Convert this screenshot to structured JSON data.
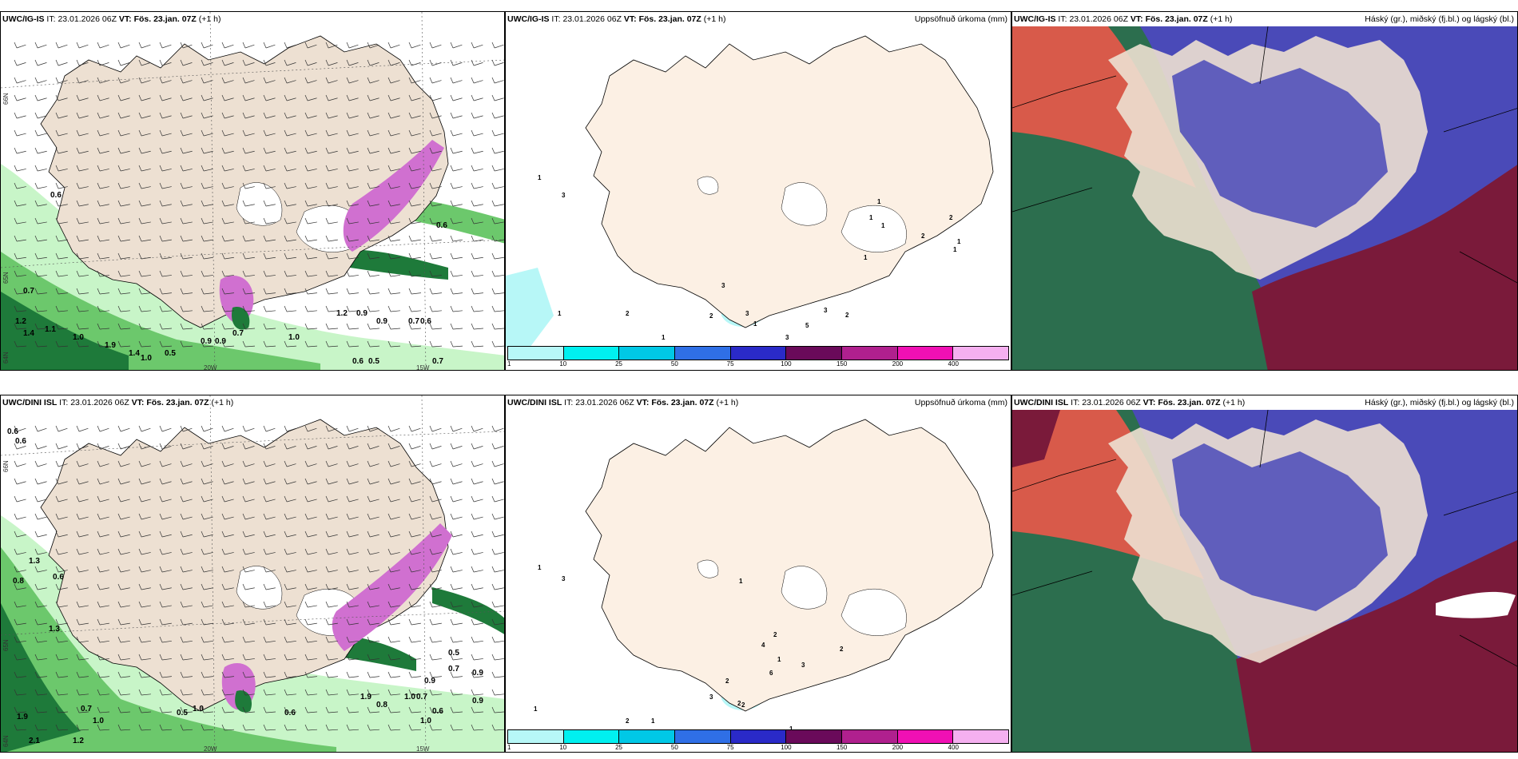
{
  "panels": [
    {
      "title_model": "UWC/IG-IS",
      "it_label": "IT:",
      "it_value": "23.01.2026 06Z",
      "vt_label": "VT:",
      "vt_value": "Fös. 23.jan. 07Z",
      "lead": "(+1 h)",
      "right_title": "",
      "axis_bottom": [
        "20W",
        "15W"
      ],
      "axis_left": [
        "66N",
        "65N",
        "64N"
      ],
      "values": [
        "0.6",
        "0.7",
        "1.2",
        "1.4",
        "1.1",
        "1.0",
        "1.9",
        "1.4",
        "1.0",
        "0.5",
        "0.9",
        "0.9",
        "0.7",
        "1.0",
        "0.6",
        "0.5",
        "0.7",
        "1.2",
        "0.9",
        "0.9",
        "0.7",
        "0.6",
        "0.6"
      ]
    },
    {
      "title_model": "UWC/IG-IS",
      "it_label": "IT:",
      "it_value": "23.01.2026 06Z",
      "vt_label": "VT:",
      "vt_value": "Fös. 23.jan. 07Z",
      "lead": "(+1 h)",
      "right_title": "Uppsöfnuð úrkoma (mm)",
      "values": [
        "1",
        "3",
        "1",
        "2",
        "1",
        "3",
        "2",
        "3",
        "1",
        "3",
        "5",
        "3",
        "2",
        "1",
        "1",
        "1",
        "1",
        "2",
        "1",
        "1",
        "2"
      ]
    },
    {
      "title_model": "UWC/IG-IS",
      "it_label": "IT:",
      "it_value": "23.01.2026 06Z",
      "vt_label": "VT:",
      "vt_value": "Fös. 23.jan. 07Z",
      "lead": "(+1 h)",
      "right_title": "Háský (gr.), miðský (fj.bl.) og lágský (bl.)"
    },
    {
      "title_model": "UWC/DINI ISL",
      "it_label": "IT:",
      "it_value": "23.01.2026 06Z",
      "vt_label": "VT:",
      "vt_value": "Fös. 23.jan. 07Z",
      "lead": "(+1 h)",
      "right_title": "",
      "axis_bottom": [
        "20W",
        "15W"
      ],
      "axis_left": [
        "66N",
        "65N",
        "64N"
      ],
      "values": [
        "0.6",
        "0.6",
        "1.3",
        "0.8",
        "0.6",
        "1.3",
        "0.7",
        "1.9",
        "1.0",
        "2.1",
        "1.2",
        "0.5",
        "1.0",
        "0.6",
        "0.8",
        "1.9",
        "0.9",
        "1.0",
        "0.7",
        "0.6",
        "0.9",
        "0.5",
        "1.0",
        "0.7",
        "0.9"
      ]
    },
    {
      "title_model": "UWC/DINI ISL",
      "it_label": "IT:",
      "it_value": "23.01.2026 06Z",
      "vt_label": "VT:",
      "vt_value": "Fös. 23.jan. 07Z",
      "lead": "(+1 h)",
      "right_title": "Uppsöfnuð úrkoma (mm)",
      "values": [
        "1",
        "3",
        "1",
        "2",
        "1",
        "2",
        "3",
        "4",
        "2",
        "1",
        "2",
        "3",
        "6",
        "1",
        "2",
        "1",
        "1",
        "2"
      ]
    },
    {
      "title_model": "UWC/DINI ISL",
      "it_label": "IT:",
      "it_value": "23.01.2026 06Z",
      "vt_label": "VT:",
      "vt_value": "Fös. 23.jan. 07Z",
      "lead": "(+1 h)",
      "right_title": "Háský (gr.), miðský (fj.bl.) og lágský (bl.)"
    }
  ],
  "colorbar": {
    "labels": [
      "1",
      "10",
      "25",
      "50",
      "75",
      "100",
      "150",
      "200",
      "400"
    ],
    "colors": [
      "#b7f7f7",
      "#00f0f0",
      "#00c8e6",
      "#2f6fe6",
      "#2a2ac8",
      "#6a0a5a",
      "#b0208e",
      "#f010b4",
      "#f5b0f0"
    ]
  },
  "colors": {
    "land": "#ede0d2",
    "land_light": "#fcf0e4",
    "sea": "#ffffff",
    "precip_light": "#c8f5c8",
    "precip_mid": "#6cc86c",
    "precip_dark": "#1e7a3a",
    "snow_purple": "#d070d0",
    "cloud_high": "#2c6e4e",
    "cloud_mid": "#d85a4a",
    "cloud_low": "#4a4ab8",
    "cloud_maroon": "#7a1a3a"
  }
}
